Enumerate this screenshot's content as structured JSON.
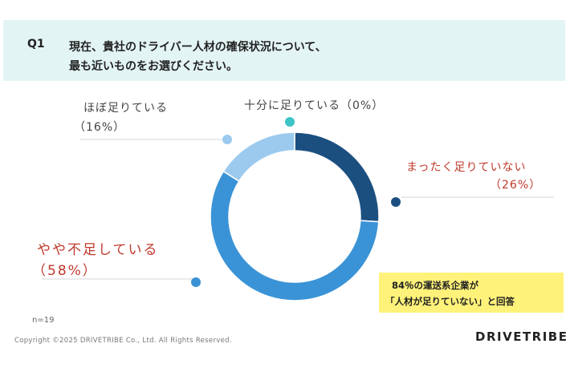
{
  "header": {
    "q_label": "Q1",
    "question": "現在、貴社のドライバー人材の確保状況について、\n最も近いものをお選びください。"
  },
  "chart_data": {
    "type": "pie",
    "title": "",
    "categories": [
      "まったく足りていない",
      "やや不足している",
      "ほぼ足りている",
      "十分に足りている"
    ],
    "values": [
      26,
      58,
      16,
      0
    ],
    "unit": "%",
    "colors": [
      "#1b4f80",
      "#3a93d6",
      "#9ccaee",
      "#3cc4c7"
    ],
    "legend": "none",
    "labels": {
      "mattaku": {
        "name": "まったく足りていない",
        "pct": "（26%）"
      },
      "yaya": {
        "name": "やや不足している",
        "pct": "（58%）"
      },
      "hobo": {
        "name": "ほぼ足りている",
        "pct": "（16%）"
      },
      "juubun": {
        "name": "十分に足りている（0%）"
      }
    }
  },
  "callout": {
    "line1": "84％の運送系企業が",
    "line2": "「人材が足りていない」と回答"
  },
  "footnote": "n=19",
  "copyright": "Copyright ©2025 DRIVETRIBE Co., Ltd. All Rights Reserved.",
  "logo": "DRIVETRIBE"
}
